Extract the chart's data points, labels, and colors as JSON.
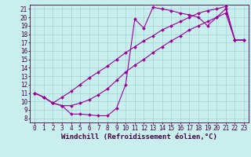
{
  "bg_color": "#c8eeee",
  "line_color": "#990099",
  "xlim": [
    -0.5,
    23.5
  ],
  "ylim": [
    7.5,
    21.5
  ],
  "xticks": [
    0,
    1,
    2,
    3,
    4,
    5,
    6,
    7,
    8,
    9,
    10,
    11,
    12,
    13,
    14,
    15,
    16,
    17,
    18,
    19,
    20,
    21,
    22,
    23
  ],
  "yticks": [
    8,
    9,
    10,
    11,
    12,
    13,
    14,
    15,
    16,
    17,
    18,
    19,
    20,
    21
  ],
  "xlabel": "Windchill (Refroidissement éolien,°C)",
  "tick_fontsize": 5.5,
  "xlabel_fontsize": 6.5,
  "linewidth": 0.8,
  "markersize": 2.0,
  "line1_x": [
    0,
    1,
    2,
    3,
    4,
    5,
    6,
    7,
    8,
    9,
    10,
    11,
    12,
    13,
    14,
    15,
    16,
    17,
    18,
    19,
    20,
    21,
    22,
    23
  ],
  "line1_y": [
    11.0,
    10.5,
    9.8,
    9.5,
    8.5,
    8.5,
    8.4,
    8.3,
    8.3,
    9.2,
    12.0,
    19.8,
    18.7,
    21.2,
    21.0,
    20.8,
    20.5,
    20.3,
    20.0,
    19.0,
    20.0,
    21.0,
    17.3,
    17.3
  ],
  "line2_x": [
    0,
    1,
    2,
    3,
    4,
    5,
    6,
    7,
    8,
    9,
    10,
    11,
    12,
    13,
    14,
    15,
    16,
    17,
    18,
    19,
    20,
    21,
    22,
    23
  ],
  "line2_y": [
    11.0,
    10.5,
    9.8,
    9.5,
    9.5,
    9.8,
    10.2,
    10.8,
    11.5,
    12.5,
    13.5,
    14.3,
    15.0,
    15.8,
    16.5,
    17.2,
    17.8,
    18.5,
    19.0,
    19.5,
    20.0,
    20.5,
    17.3,
    17.3
  ],
  "line3_x": [
    0,
    1,
    2,
    3,
    4,
    5,
    6,
    7,
    8,
    9,
    10,
    11,
    12,
    13,
    14,
    15,
    16,
    17,
    18,
    19,
    20,
    21,
    22,
    23
  ],
  "line3_y": [
    11.0,
    10.5,
    9.8,
    10.5,
    11.2,
    12.0,
    12.8,
    13.5,
    14.2,
    15.0,
    15.8,
    16.5,
    17.2,
    17.8,
    18.5,
    19.0,
    19.5,
    20.0,
    20.5,
    20.8,
    21.0,
    21.3,
    17.3,
    17.3
  ]
}
